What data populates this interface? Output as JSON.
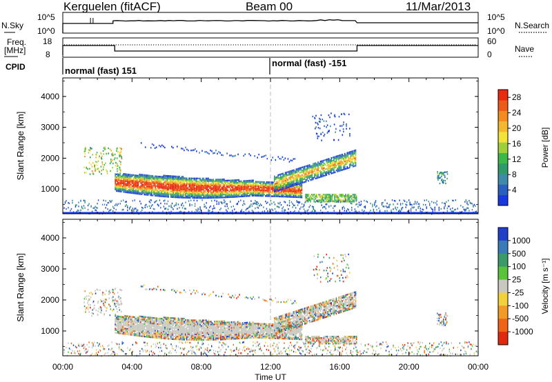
{
  "header": {
    "station": "Kerguelen (fitACF)",
    "beam": "Beam 00",
    "date": "11/Mar/2013"
  },
  "top_strip": {
    "nsky_label": "N.Sky",
    "nsky_ticks": [
      "10^5",
      "10^0"
    ],
    "nsearch_label": "N.Search",
    "nsearch_ticks": [
      "10^5",
      "10^0"
    ],
    "freq_label": "Freq.",
    "freq_unit": "[MHz]",
    "freq_ticks": [
      "18",
      "8"
    ],
    "nave_label": "Nave",
    "nave_ticks": [
      "60",
      "0"
    ],
    "cpid_label": "CPID",
    "cpid_segments": [
      "normal (fast) 151",
      "normal (fast) -151"
    ]
  },
  "chart_data": [
    {
      "type": "heatmap",
      "quantity": "Power",
      "ylabel": "Slant Range [km]",
      "ylim": [
        200,
        4600
      ],
      "yticks": [
        "1000",
        "2000",
        "3000",
        "4000"
      ],
      "colorbar": {
        "label": "Power [dB]",
        "ticks": [
          "4",
          "8",
          "12",
          "16",
          "20",
          "24",
          "28"
        ],
        "range": [
          0,
          30
        ]
      },
      "colors": [
        "#1838e0",
        "#2a5fc0",
        "#3f8aa8",
        "#2f9a6a",
        "#3cb848",
        "#9ed03a",
        "#f2e23a",
        "#f4b830",
        "#f28c20",
        "#ee5a18",
        "#e82a10"
      ]
    },
    {
      "type": "heatmap",
      "quantity": "Velocity",
      "ylabel": "Slant Range [km]",
      "ylim": [
        200,
        4600
      ],
      "yticks": [
        "1000",
        "2000",
        "3000",
        "4000"
      ],
      "colorbar": {
        "label": "Velocity [m s⁻¹]",
        "ticks": [
          "1000",
          "500",
          "100",
          "25",
          "-25",
          "-100",
          "-500",
          "-1000"
        ]
      },
      "colors": [
        "#2040c8",
        "#3a7ab8",
        "#3c9a68",
        "#59c43a",
        "#c8c8c0",
        "#f2d23c",
        "#f29a28",
        "#f06418",
        "#e02a10"
      ]
    }
  ],
  "xaxis": {
    "label": "Time UT",
    "ticks": [
      "00:00",
      "04:00",
      "08:00",
      "12:00",
      "16:00",
      "20:00",
      "00:00"
    ],
    "range_hours": [
      0,
      24
    ]
  }
}
